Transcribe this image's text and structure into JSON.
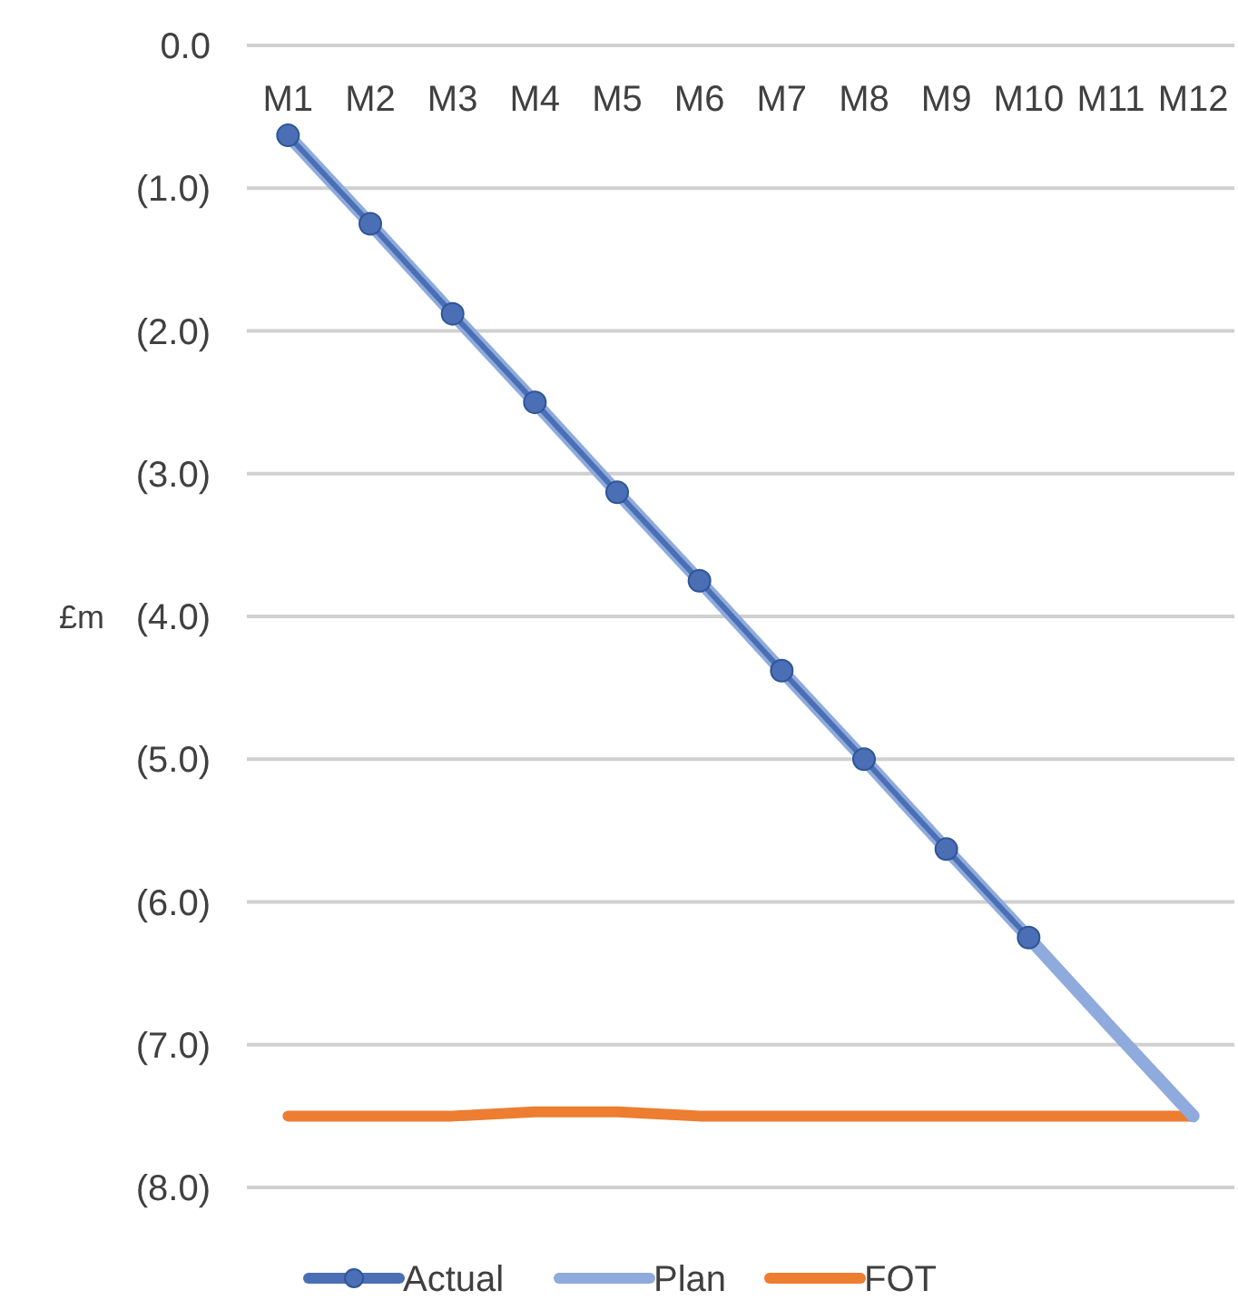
{
  "chart_data": {
    "type": "line",
    "ylabel": "£m",
    "categories": [
      "M1",
      "M2",
      "M3",
      "M4",
      "M5",
      "M6",
      "M7",
      "M8",
      "M9",
      "M10",
      "M11",
      "M12"
    ],
    "series": [
      {
        "name": "Actual",
        "color": "#4a6fb5",
        "marker": "circle",
        "values": [
          -0.63,
          -1.25,
          -1.88,
          -2.5,
          -3.13,
          -3.75,
          -4.38,
          -5.0,
          -5.63,
          -6.25,
          null,
          null
        ]
      },
      {
        "name": "Plan",
        "color": "#8faadc",
        "values": [
          -0.63,
          -1.25,
          -1.88,
          -2.5,
          -3.13,
          -3.75,
          -4.38,
          -5.0,
          -5.63,
          -6.25,
          -6.88,
          -7.5
        ]
      },
      {
        "name": "FOT",
        "color": "#ed7d31",
        "values": [
          -7.5,
          -7.5,
          -7.5,
          -7.47,
          -7.47,
          -7.5,
          -7.5,
          -7.5,
          -7.5,
          -7.5,
          -7.5,
          -7.5
        ]
      }
    ],
    "ylim": [
      -8,
      0
    ],
    "yticks": [
      {
        "value": 0,
        "label": "0.0"
      },
      {
        "value": -1,
        "label": "(1.0)"
      },
      {
        "value": -2,
        "label": "(2.0)"
      },
      {
        "value": -3,
        "label": "(3.0)"
      },
      {
        "value": -4,
        "label": "(4.0)"
      },
      {
        "value": -5,
        "label": "(5.0)"
      },
      {
        "value": -6,
        "label": "(6.0)"
      },
      {
        "value": -7,
        "label": "(7.0)"
      },
      {
        "value": -8,
        "label": "(8.0)"
      }
    ],
    "grid": "y",
    "legend": "bottom",
    "line_style": "solid"
  }
}
